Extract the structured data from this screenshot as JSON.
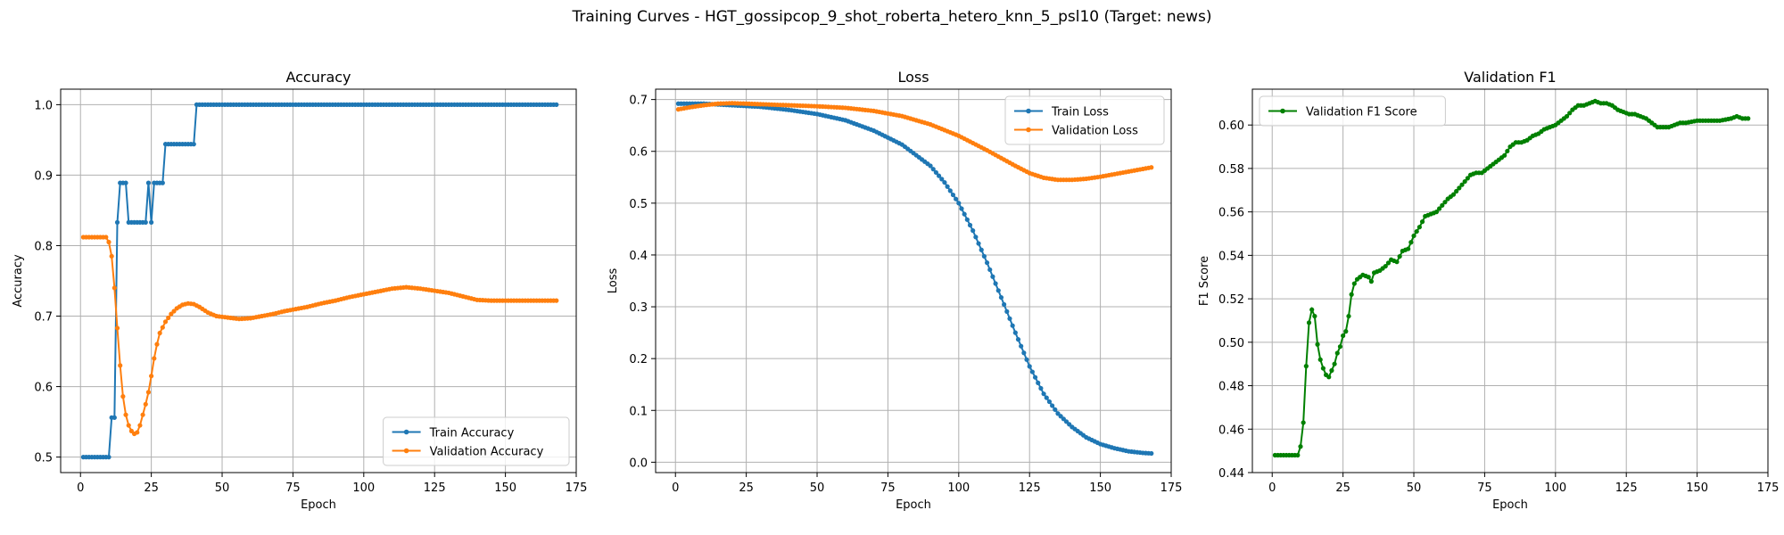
{
  "figure": {
    "title": "Training Curves - HGT_gossipcop_9_shot_roberta_hetero_knn_5_psl10 (Target: news)"
  },
  "chart_data": [
    {
      "type": "line",
      "title": "Accuracy",
      "xlabel": "Epoch",
      "ylabel": "Accuracy",
      "xlim": [
        -7,
        175
      ],
      "ylim": [
        0.478,
        1.022
      ],
      "xticks": [
        0,
        25,
        50,
        75,
        100,
        125,
        150,
        175
      ],
      "yticks": [
        0.5,
        0.6,
        0.7,
        0.8,
        0.9,
        1.0
      ],
      "ytick_labels": [
        "0.5",
        "0.6",
        "0.7",
        "0.8",
        "0.9",
        "1.0"
      ],
      "grid": true,
      "legend": "lower-right",
      "series": [
        {
          "name": "Train Accuracy",
          "color": "#1f77b4",
          "points": [
            [
              1,
              0.5
            ],
            [
              10,
              0.5
            ],
            [
              11,
              0.556
            ],
            [
              12,
              0.556
            ],
            [
              13,
              0.833
            ],
            [
              14,
              0.889
            ],
            [
              16,
              0.889
            ],
            [
              17,
              0.833
            ],
            [
              23,
              0.833
            ],
            [
              24,
              0.889
            ],
            [
              25,
              0.833
            ],
            [
              26,
              0.889
            ],
            [
              29,
              0.889
            ],
            [
              30,
              0.944
            ],
            [
              40,
              0.944
            ],
            [
              41,
              1.0
            ],
            [
              168,
              1.0
            ]
          ]
        },
        {
          "name": "Validation Accuracy",
          "color": "#ff7f0e",
          "points": [
            [
              1,
              0.812
            ],
            [
              9,
              0.812
            ],
            [
              10,
              0.805
            ],
            [
              11,
              0.785
            ],
            [
              12,
              0.74
            ],
            [
              13,
              0.683
            ],
            [
              14,
              0.63
            ],
            [
              15,
              0.586
            ],
            [
              16,
              0.56
            ],
            [
              17,
              0.545
            ],
            [
              18,
              0.537
            ],
            [
              19,
              0.533
            ],
            [
              20,
              0.535
            ],
            [
              21,
              0.545
            ],
            [
              22,
              0.56
            ],
            [
              23,
              0.575
            ],
            [
              24,
              0.592
            ],
            [
              25,
              0.615
            ],
            [
              26,
              0.64
            ],
            [
              27,
              0.66
            ],
            [
              28,
              0.676
            ],
            [
              30,
              0.692
            ],
            [
              32,
              0.703
            ],
            [
              34,
              0.711
            ],
            [
              36,
              0.716
            ],
            [
              38,
              0.718
            ],
            [
              40,
              0.717
            ],
            [
              42,
              0.713
            ],
            [
              45,
              0.705
            ],
            [
              48,
              0.7
            ],
            [
              52,
              0.698
            ],
            [
              56,
              0.696
            ],
            [
              60,
              0.697
            ],
            [
              64,
              0.7
            ],
            [
              68,
              0.703
            ],
            [
              72,
              0.707
            ],
            [
              76,
              0.71
            ],
            [
              80,
              0.713
            ],
            [
              85,
              0.718
            ],
            [
              90,
              0.722
            ],
            [
              95,
              0.727
            ],
            [
              100,
              0.731
            ],
            [
              105,
              0.735
            ],
            [
              110,
              0.739
            ],
            [
              115,
              0.741
            ],
            [
              120,
              0.739
            ],
            [
              125,
              0.736
            ],
            [
              130,
              0.733
            ],
            [
              135,
              0.728
            ],
            [
              140,
              0.723
            ],
            [
              145,
              0.722
            ],
            [
              150,
              0.722
            ],
            [
              155,
              0.722
            ],
            [
              160,
              0.722
            ],
            [
              165,
              0.722
            ],
            [
              168,
              0.722
            ]
          ]
        }
      ]
    },
    {
      "type": "line",
      "title": "Loss",
      "xlabel": "Epoch",
      "ylabel": "Loss",
      "xlim": [
        -7,
        175
      ],
      "ylim": [
        -0.02,
        0.72
      ],
      "xticks": [
        0,
        25,
        50,
        75,
        100,
        125,
        150,
        175
      ],
      "yticks": [
        0.0,
        0.1,
        0.2,
        0.3,
        0.4,
        0.5,
        0.6,
        0.7
      ],
      "ytick_labels": [
        "0.0",
        "0.1",
        "0.2",
        "0.3",
        "0.4",
        "0.5",
        "0.6",
        "0.7"
      ],
      "grid": true,
      "legend": "top-right",
      "series": [
        {
          "name": "Train Loss",
          "color": "#1f77b4",
          "points": [
            [
              1,
              0.692
            ],
            [
              10,
              0.692
            ],
            [
              20,
              0.689
            ],
            [
              30,
              0.686
            ],
            [
              40,
              0.68
            ],
            [
              50,
              0.672
            ],
            [
              60,
              0.66
            ],
            [
              70,
              0.64
            ],
            [
              80,
              0.613
            ],
            [
              90,
              0.572
            ],
            [
              95,
              0.54
            ],
            [
              100,
              0.5
            ],
            [
              105,
              0.447
            ],
            [
              110,
              0.385
            ],
            [
              115,
              0.318
            ],
            [
              120,
              0.25
            ],
            [
              125,
              0.185
            ],
            [
              130,
              0.132
            ],
            [
              135,
              0.094
            ],
            [
              140,
              0.068
            ],
            [
              145,
              0.048
            ],
            [
              150,
              0.035
            ],
            [
              155,
              0.027
            ],
            [
              160,
              0.021
            ],
            [
              165,
              0.018
            ],
            [
              168,
              0.017
            ]
          ]
        },
        {
          "name": "Validation Loss",
          "color": "#ff7f0e",
          "points": [
            [
              1,
              0.681
            ],
            [
              5,
              0.685
            ],
            [
              10,
              0.689
            ],
            [
              15,
              0.692
            ],
            [
              20,
              0.693
            ],
            [
              30,
              0.691
            ],
            [
              40,
              0.689
            ],
            [
              50,
              0.687
            ],
            [
              60,
              0.684
            ],
            [
              70,
              0.678
            ],
            [
              80,
              0.668
            ],
            [
              90,
              0.652
            ],
            [
              100,
              0.63
            ],
            [
              110,
              0.602
            ],
            [
              120,
              0.572
            ],
            [
              125,
              0.558
            ],
            [
              130,
              0.549
            ],
            [
              135,
              0.545
            ],
            [
              140,
              0.545
            ],
            [
              145,
              0.547
            ],
            [
              150,
              0.551
            ],
            [
              155,
              0.556
            ],
            [
              160,
              0.561
            ],
            [
              165,
              0.566
            ],
            [
              168,
              0.569
            ]
          ]
        }
      ]
    },
    {
      "type": "line",
      "title": "Validation F1",
      "xlabel": "Epoch",
      "ylabel": "F1 Score",
      "xlim": [
        -7,
        175
      ],
      "ylim": [
        0.44,
        0.6165
      ],
      "xticks": [
        0,
        25,
        50,
        75,
        100,
        125,
        150,
        175
      ],
      "yticks": [
        0.44,
        0.46,
        0.48,
        0.5,
        0.52,
        0.54,
        0.56,
        0.58,
        0.6
      ],
      "ytick_labels": [
        "0.44",
        "0.46",
        "0.48",
        "0.50",
        "0.52",
        "0.54",
        "0.56",
        "0.58",
        "0.60"
      ],
      "grid": true,
      "legend": "top-left",
      "series": [
        {
          "name": "Validation F1 Score",
          "color": "#008000",
          "points": [
            [
              1,
              0.448
            ],
            [
              9,
              0.448
            ],
            [
              10,
              0.452
            ],
            [
              11,
              0.463
            ],
            [
              12,
              0.489
            ],
            [
              13,
              0.509
            ],
            [
              14,
              0.515
            ],
            [
              15,
              0.512
            ],
            [
              16,
              0.499
            ],
            [
              17,
              0.492
            ],
            [
              18,
              0.488
            ],
            [
              19,
              0.485
            ],
            [
              20,
              0.484
            ],
            [
              21,
              0.487
            ],
            [
              22,
              0.49
            ],
            [
              23,
              0.495
            ],
            [
              24,
              0.498
            ],
            [
              25,
              0.503
            ],
            [
              26,
              0.505
            ],
            [
              27,
              0.512
            ],
            [
              28,
              0.522
            ],
            [
              29,
              0.527
            ],
            [
              30,
              0.529
            ],
            [
              32,
              0.531
            ],
            [
              34,
              0.53
            ],
            [
              35,
              0.528
            ],
            [
              36,
              0.532
            ],
            [
              38,
              0.533
            ],
            [
              40,
              0.535
            ],
            [
              42,
              0.538
            ],
            [
              44,
              0.537
            ],
            [
              46,
              0.542
            ],
            [
              48,
              0.543
            ],
            [
              50,
              0.549
            ],
            [
              52,
              0.553
            ],
            [
              54,
              0.558
            ],
            [
              56,
              0.559
            ],
            [
              58,
              0.56
            ],
            [
              60,
              0.563
            ],
            [
              62,
              0.566
            ],
            [
              64,
              0.568
            ],
            [
              66,
              0.571
            ],
            [
              68,
              0.574
            ],
            [
              70,
              0.577
            ],
            [
              72,
              0.578
            ],
            [
              74,
              0.578
            ],
            [
              76,
              0.58
            ],
            [
              78,
              0.582
            ],
            [
              80,
              0.584
            ],
            [
              82,
              0.586
            ],
            [
              84,
              0.59
            ],
            [
              86,
              0.592
            ],
            [
              88,
              0.592
            ],
            [
              90,
              0.593
            ],
            [
              92,
              0.595
            ],
            [
              94,
              0.596
            ],
            [
              96,
              0.598
            ],
            [
              98,
              0.599
            ],
            [
              100,
              0.6
            ],
            [
              102,
              0.602
            ],
            [
              104,
              0.604
            ],
            [
              106,
              0.607
            ],
            [
              108,
              0.609
            ],
            [
              110,
              0.609
            ],
            [
              112,
              0.61
            ],
            [
              114,
              0.611
            ],
            [
              116,
              0.61
            ],
            [
              118,
              0.61
            ],
            [
              120,
              0.609
            ],
            [
              122,
              0.607
            ],
            [
              124,
              0.606
            ],
            [
              126,
              0.605
            ],
            [
              128,
              0.605
            ],
            [
              130,
              0.604
            ],
            [
              132,
              0.603
            ],
            [
              134,
              0.601
            ],
            [
              136,
              0.599
            ],
            [
              138,
              0.599
            ],
            [
              140,
              0.599
            ],
            [
              142,
              0.6
            ],
            [
              144,
              0.601
            ],
            [
              146,
              0.601
            ],
            [
              150,
              0.602
            ],
            [
              154,
              0.602
            ],
            [
              158,
              0.602
            ],
            [
              162,
              0.603
            ],
            [
              164,
              0.604
            ],
            [
              166,
              0.603
            ],
            [
              168,
              0.603
            ]
          ]
        }
      ]
    }
  ]
}
